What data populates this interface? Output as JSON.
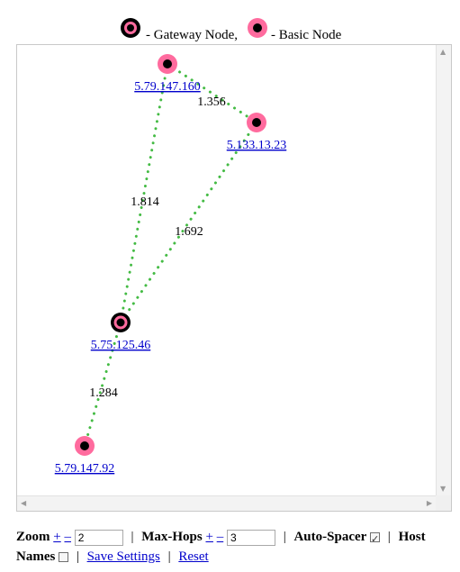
{
  "legend": {
    "gateway_label": "- Gateway Node,",
    "basic_label": "- Basic Node"
  },
  "colors": {
    "node_fill": "#ff6b9e",
    "node_core": "#000000",
    "edge": "#44bb44",
    "link": "#0000cc"
  },
  "map": {
    "nodes": [
      {
        "id": "n1",
        "label": "5.79.147.160",
        "type": "basic"
      },
      {
        "id": "n2",
        "label": "5.133.13.23",
        "type": "basic"
      },
      {
        "id": "n3",
        "label": "5.75.125.46",
        "type": "gateway"
      },
      {
        "id": "n4",
        "label": "5.79.147.92",
        "type": "basic"
      }
    ],
    "edges": [
      {
        "from": "n1",
        "to": "n2",
        "label": "1.356"
      },
      {
        "from": "n1",
        "to": "n3",
        "label": "1.814"
      },
      {
        "from": "n2",
        "to": "n3",
        "label": "1.692"
      },
      {
        "from": "n3",
        "to": "n4",
        "label": "1.284"
      }
    ]
  },
  "controls": {
    "zoom_label": "Zoom",
    "plus": "+",
    "minus": "–",
    "zoom_value": "2",
    "maxhops_label": "Max-Hops",
    "maxhops_value": "3",
    "autospacer_label": "Auto-Spacer",
    "autospacer_checked": true,
    "hostnames_label_1": "Host",
    "hostnames_label_2": "Names",
    "hostnames_checked": false,
    "save_settings": "Save Settings",
    "reset": "Reset",
    "separator": "|"
  }
}
